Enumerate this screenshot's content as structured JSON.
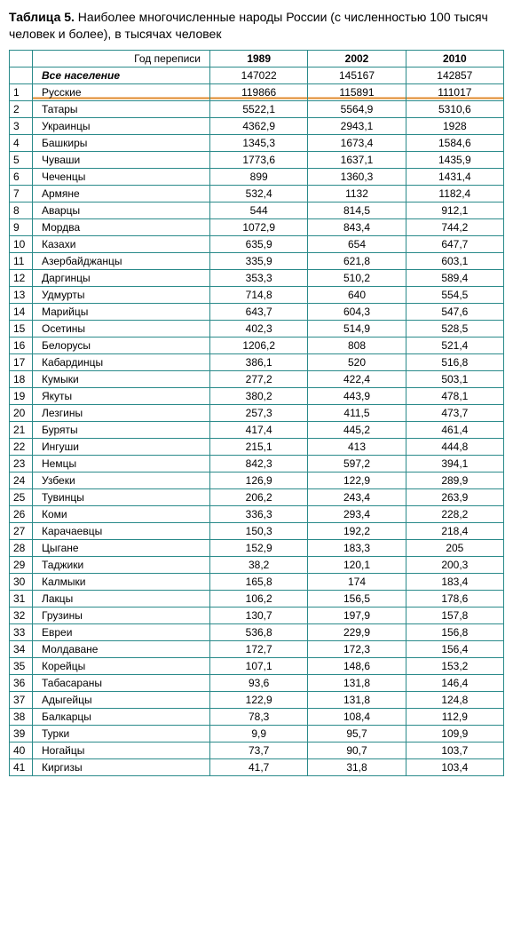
{
  "title_bold": "Таблица 5.",
  "title_rest": " Наиболее многочисленные народы России (с численностью 100 тысяч человек и более), в тысячах человек",
  "header": {
    "year_label": "Год переписи",
    "years": [
      "1989",
      "2002",
      "2010"
    ]
  },
  "total_row": {
    "label": "Все население",
    "values": [
      "147022",
      "145167",
      "142857"
    ]
  },
  "highlight_index": 0,
  "rows": [
    {
      "n": "1",
      "name": "Русские",
      "v": [
        "119866",
        "115891",
        "111017"
      ]
    },
    {
      "n": "2",
      "name": "Татары",
      "v": [
        "5522,1",
        "5564,9",
        "5310,6"
      ]
    },
    {
      "n": "3",
      "name": "Украинцы",
      "v": [
        "4362,9",
        "2943,1",
        "1928"
      ]
    },
    {
      "n": "4",
      "name": "Башкиры",
      "v": [
        "1345,3",
        "1673,4",
        "1584,6"
      ]
    },
    {
      "n": "5",
      "name": "Чуваши",
      "v": [
        "1773,6",
        "1637,1",
        "1435,9"
      ]
    },
    {
      "n": "6",
      "name": "Чеченцы",
      "v": [
        "899",
        "1360,3",
        "1431,4"
      ]
    },
    {
      "n": "7",
      "name": "Армяне",
      "v": [
        "532,4",
        "1132",
        "1182,4"
      ]
    },
    {
      "n": "8",
      "name": "Аварцы",
      "v": [
        "544",
        "814,5",
        "912,1"
      ]
    },
    {
      "n": "9",
      "name": "Мордва",
      "v": [
        "1072,9",
        "843,4",
        "744,2"
      ]
    },
    {
      "n": "10",
      "name": "Казахи",
      "v": [
        "635,9",
        "654",
        "647,7"
      ]
    },
    {
      "n": "11",
      "name": "Азербайджанцы",
      "v": [
        "335,9",
        "621,8",
        "603,1"
      ]
    },
    {
      "n": "12",
      "name": "Даргинцы",
      "v": [
        "353,3",
        "510,2",
        "589,4"
      ]
    },
    {
      "n": "13",
      "name": "Удмурты",
      "v": [
        "714,8",
        "640",
        "554,5"
      ]
    },
    {
      "n": "14",
      "name": "Марийцы",
      "v": [
        "643,7",
        "604,3",
        "547,6"
      ]
    },
    {
      "n": "15",
      "name": "Осетины",
      "v": [
        "402,3",
        "514,9",
        "528,5"
      ]
    },
    {
      "n": "16",
      "name": "Белорусы",
      "v": [
        "1206,2",
        "808",
        "521,4"
      ]
    },
    {
      "n": "17",
      "name": "Кабардинцы",
      "v": [
        "386,1",
        "520",
        "516,8"
      ]
    },
    {
      "n": "18",
      "name": "Кумыки",
      "v": [
        "277,2",
        "422,4",
        "503,1"
      ]
    },
    {
      "n": "19",
      "name": "Якуты",
      "v": [
        "380,2",
        "443,9",
        "478,1"
      ]
    },
    {
      "n": "20",
      "name": "Лезгины",
      "v": [
        "257,3",
        "411,5",
        "473,7"
      ]
    },
    {
      "n": "21",
      "name": "Буряты",
      "v": [
        "417,4",
        "445,2",
        "461,4"
      ]
    },
    {
      "n": "22",
      "name": "Ингуши",
      "v": [
        "215,1",
        "413",
        "444,8"
      ]
    },
    {
      "n": "23",
      "name": "Немцы",
      "v": [
        "842,3",
        "597,2",
        "394,1"
      ]
    },
    {
      "n": "24",
      "name": "Узбеки",
      "v": [
        "126,9",
        "122,9",
        "289,9"
      ]
    },
    {
      "n": "25",
      "name": "Тувинцы",
      "v": [
        "206,2",
        "243,4",
        "263,9"
      ]
    },
    {
      "n": "26",
      "name": "Коми",
      "v": [
        "336,3",
        "293,4",
        "228,2"
      ]
    },
    {
      "n": "27",
      "name": "Карачаевцы",
      "v": [
        "150,3",
        "192,2",
        "218,4"
      ]
    },
    {
      "n": "28",
      "name": "Цыгане",
      "v": [
        "152,9",
        "183,3",
        "205"
      ]
    },
    {
      "n": "29",
      "name": "Таджики",
      "v": [
        "38,2",
        "120,1",
        "200,3"
      ]
    },
    {
      "n": "30",
      "name": "Калмыки",
      "v": [
        "165,8",
        "174",
        "183,4"
      ]
    },
    {
      "n": "31",
      "name": "Лакцы",
      "v": [
        "106,2",
        "156,5",
        "178,6"
      ]
    },
    {
      "n": "32",
      "name": "Грузины",
      "v": [
        "130,7",
        "197,9",
        "157,8"
      ]
    },
    {
      "n": "33",
      "name": "Евреи",
      "v": [
        "536,8",
        "229,9",
        "156,8"
      ]
    },
    {
      "n": "34",
      "name": "Молдаване",
      "v": [
        "172,7",
        "172,3",
        "156,4"
      ]
    },
    {
      "n": "35",
      "name": "Корейцы",
      "v": [
        "107,1",
        "148,6",
        "153,2"
      ]
    },
    {
      "n": "36",
      "name": "Табасараны",
      "v": [
        "93,6",
        "131,8",
        "146,4"
      ]
    },
    {
      "n": "37",
      "name": "Адыгейцы",
      "v": [
        "122,9",
        "131,8",
        "124,8"
      ]
    },
    {
      "n": "38",
      "name": "Балкарцы",
      "v": [
        "78,3",
        "108,4",
        "112,9"
      ]
    },
    {
      "n": "39",
      "name": "Турки",
      "v": [
        "9,9",
        "95,7",
        "109,9"
      ]
    },
    {
      "n": "40",
      "name": "Ногайцы",
      "v": [
        "73,7",
        "90,7",
        "103,7"
      ]
    },
    {
      "n": "41",
      "name": "Киргизы",
      "v": [
        "41,7",
        "31,8",
        "103,4"
      ]
    }
  ],
  "colors": {
    "border": "#2a8a8a",
    "highlight_line": "#e08a2c",
    "text": "#000000",
    "background": "#ffffff"
  }
}
